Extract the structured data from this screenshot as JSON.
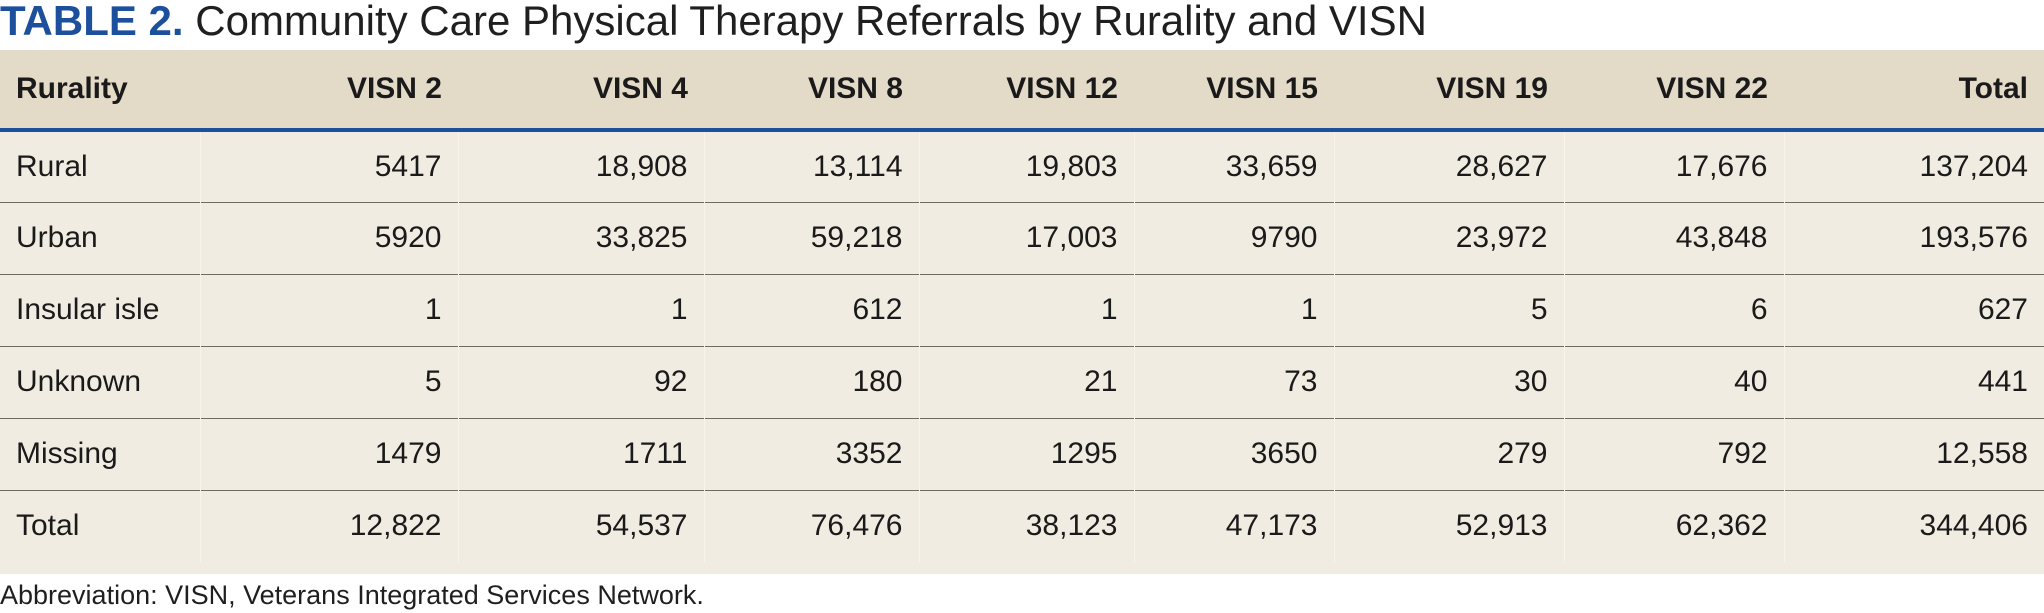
{
  "title": {
    "label": "TABLE 2.",
    "text": "Community Care Physical Therapy Referrals by Rurality and VISN"
  },
  "table": {
    "headers": [
      "Rurality",
      "VISN 2",
      "VISN 4",
      "VISN 8",
      "VISN 12",
      "VISN 15",
      "VISN 19",
      "VISN 22",
      "Total"
    ],
    "rows": [
      [
        "Rural",
        "5417",
        "18,908",
        "13,114",
        "19,803",
        "33,659",
        "28,627",
        "17,676",
        "137,204"
      ],
      [
        "Urban",
        "5920",
        "33,825",
        "59,218",
        "17,003",
        "9790",
        "23,972",
        "43,848",
        "193,576"
      ],
      [
        "Insular isle",
        "1",
        "1",
        "612",
        "1",
        "1",
        "5",
        "6",
        "627"
      ],
      [
        "Unknown",
        "5",
        "92",
        "180",
        "21",
        "73",
        "30",
        "40",
        "441"
      ],
      [
        "Missing",
        "1479",
        "1711",
        "3352",
        "1295",
        "3650",
        "279",
        "792",
        "12,558"
      ],
      [
        "Total",
        "12,822",
        "54,537",
        "76,476",
        "38,123",
        "47,173",
        "52,913",
        "62,362",
        "344,406"
      ]
    ]
  },
  "footnote": "Abbreviation: VISN, Veterans Integrated Services Network.",
  "colors": {
    "accent": "#1c4f9c",
    "header_bg": "#e3dac8",
    "body_bg": "#f1ece2"
  }
}
